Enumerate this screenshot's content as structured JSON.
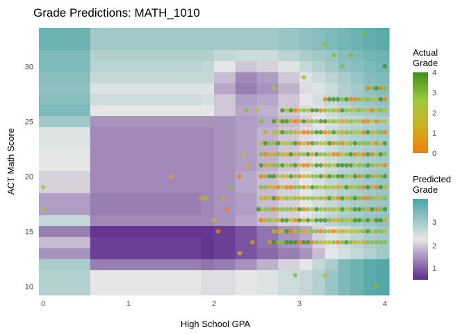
{
  "chart_data": {
    "type": "heatmap",
    "title": "Grade Predictions: MATH_1010",
    "xlabel": "High School GPA",
    "ylabel": "ACT Math Score",
    "xlim": [
      -0.05,
      4.05
    ],
    "ylim": [
      9.2,
      33.5
    ],
    "x_ticks": [
      0,
      1,
      2,
      3,
      4
    ],
    "y_ticks": [
      10,
      15,
      20,
      25,
      30
    ],
    "grid": true,
    "legend_position": "right",
    "heatmap_layer": {
      "name": "Predicted Grade",
      "color_scale": {
        "low": "#5b2a8c",
        "mid": "#e6e6e6",
        "high": "#4aa4a3",
        "domain": [
          0.4,
          4.0
        ],
        "midpoint": 2.2
      },
      "x_breaks": [
        -0.05,
        0.55,
        1.85,
        2.0,
        2.25,
        2.5,
        2.75,
        3.0,
        3.15,
        3.3,
        3.45,
        3.6,
        3.75,
        3.9,
        4.05
      ],
      "y_breaks": [
        9.2,
        11.5,
        12.5,
        13.5,
        14.5,
        15.5,
        16.5,
        18.5,
        20.5,
        22.5,
        24.5,
        25.5,
        26.5,
        27.5,
        28.5,
        29.5,
        30.5,
        31.5,
        33.5
      ],
      "rows_low_to_high": [
        [
          2.8,
          2.2,
          2.1,
          2.1,
          2.2,
          2.3,
          2.5,
          2.6,
          2.8,
          3.1,
          3.4,
          3.6,
          3.8,
          3.9
        ],
        [
          2.9,
          1.2,
          1.1,
          1.2,
          1.4,
          1.7,
          2.0,
          2.2,
          2.6,
          2.9,
          3.4,
          3.6,
          3.8,
          3.9
        ],
        [
          1.4,
          0.6,
          0.5,
          0.6,
          0.8,
          1.0,
          1.2,
          1.4,
          1.8,
          2.2,
          2.4,
          2.6,
          2.8,
          3.0
        ],
        [
          1.8,
          0.6,
          0.5,
          0.6,
          0.8,
          1.1,
          1.4,
          1.6,
          2.0,
          2.3,
          2.5,
          2.7,
          2.9,
          3.0
        ],
        [
          1.2,
          0.5,
          0.5,
          0.6,
          0.8,
          1.1,
          1.4,
          1.6,
          2.0,
          2.3,
          2.5,
          2.7,
          2.9,
          3.0
        ],
        [
          2.6,
          1.3,
          1.3,
          1.4,
          1.6,
          1.8,
          2.0,
          2.3,
          2.5,
          2.7,
          2.9,
          3.0,
          3.1,
          3.2
        ],
        [
          1.5,
          1.2,
          1.3,
          1.4,
          1.5,
          1.8,
          2.0,
          2.2,
          2.4,
          2.6,
          2.8,
          2.9,
          3.0,
          3.1
        ],
        [
          2.0,
          1.3,
          1.3,
          1.4,
          1.6,
          1.8,
          2.0,
          2.2,
          2.4,
          2.6,
          2.8,
          2.9,
          3.0,
          3.1
        ],
        [
          2.2,
          1.3,
          1.3,
          1.4,
          1.5,
          1.7,
          1.9,
          2.1,
          2.3,
          2.5,
          2.7,
          2.8,
          2.9,
          3.0
        ],
        [
          2.3,
          1.3,
          1.3,
          1.4,
          1.5,
          1.7,
          1.9,
          2.1,
          2.3,
          2.5,
          2.7,
          2.8,
          2.9,
          3.0
        ],
        [
          3.0,
          1.4,
          1.4,
          1.4,
          1.5,
          1.6,
          1.8,
          2.0,
          2.2,
          2.4,
          2.6,
          2.7,
          2.8,
          2.9
        ],
        [
          3.4,
          2.2,
          2.2,
          1.9,
          1.6,
          1.7,
          1.9,
          2.1,
          2.3,
          2.5,
          2.7,
          2.9,
          3.0,
          3.1
        ],
        [
          3.3,
          2.5,
          2.4,
          1.9,
          1.5,
          1.6,
          1.9,
          2.2,
          2.4,
          2.6,
          2.8,
          3.0,
          3.1,
          3.2
        ],
        [
          3.2,
          2.3,
          2.3,
          1.6,
          1.2,
          1.4,
          1.7,
          2.1,
          2.3,
          2.5,
          2.8,
          3.0,
          3.2,
          3.3
        ],
        [
          3.3,
          2.6,
          2.6,
          1.8,
          1.3,
          1.5,
          1.9,
          2.3,
          2.5,
          2.7,
          2.9,
          3.1,
          3.3,
          3.4
        ],
        [
          3.4,
          2.7,
          2.6,
          2.2,
          1.9,
          2.0,
          2.3,
          2.6,
          2.8,
          3.0,
          3.2,
          3.3,
          3.4,
          3.5
        ],
        [
          3.4,
          2.8,
          2.8,
          2.6,
          2.5,
          2.5,
          2.7,
          2.9,
          3.0,
          3.1,
          3.3,
          3.4,
          3.5,
          3.6
        ],
        [
          3.6,
          3.0,
          3.0,
          3.0,
          3.0,
          3.0,
          3.1,
          3.2,
          3.3,
          3.4,
          3.5,
          3.6,
          3.7,
          3.8
        ]
      ]
    },
    "point_layer": {
      "name": "Actual Grade",
      "color_scale": {
        "stops": [
          "#f07f09",
          "#c9b424",
          "#9dc93d",
          "#3f8f1d"
        ],
        "domain": [
          0,
          4
        ]
      },
      "points": [
        {
          "x": 0.0,
          "y": 19,
          "g": 2
        },
        {
          "x": 0.0,
          "y": 17,
          "g": 2
        },
        {
          "x": 1.5,
          "y": 20,
          "g": 1
        },
        {
          "x": 1.85,
          "y": 18,
          "g": 1
        },
        {
          "x": 1.9,
          "y": 18,
          "g": 2
        },
        {
          "x": 2.0,
          "y": 16,
          "g": 2
        },
        {
          "x": 2.05,
          "y": 15,
          "g": 0
        },
        {
          "x": 2.1,
          "y": 18,
          "g": 1
        },
        {
          "x": 2.15,
          "y": 17,
          "g": 0
        },
        {
          "x": 2.2,
          "y": 19,
          "g": 3
        },
        {
          "x": 2.3,
          "y": 13,
          "g": 1
        },
        {
          "x": 2.3,
          "y": 20,
          "g": 0
        },
        {
          "x": 2.35,
          "y": 22,
          "g": 2
        },
        {
          "x": 2.38,
          "y": 26,
          "g": 3
        },
        {
          "x": 2.4,
          "y": 21,
          "g": 1
        },
        {
          "x": 2.45,
          "y": 14,
          "g": 1
        },
        {
          "x": 2.5,
          "y": 26,
          "g": 2
        },
        {
          "x": 2.52,
          "y": 17,
          "g": 4
        },
        {
          "x": 3.9,
          "y": 10,
          "g": 3
        },
        {
          "x": 3.75,
          "y": 33,
          "g": 3
        },
        {
          "x": 3.3,
          "y": 32,
          "g": 3
        },
        {
          "x": 3.4,
          "y": 31,
          "g": 3
        },
        {
          "x": 3.5,
          "y": 30,
          "g": 3
        },
        {
          "x": 4.0,
          "y": 30,
          "g": 4
        },
        {
          "x": 3.05,
          "y": 29,
          "g": 2
        },
        {
          "x": 3.6,
          "y": 31,
          "g": 3
        },
        {
          "x": 2.7,
          "y": 28,
          "g": 2
        },
        {
          "x": 2.95,
          "y": 11,
          "g": 3
        },
        {
          "x": 3.3,
          "y": 11,
          "g": 2
        }
      ],
      "dense_region": {
        "gpa": [
          2.55,
          2.6,
          2.65,
          2.7,
          2.75,
          2.8,
          2.85,
          2.9,
          2.95,
          3.0,
          3.05,
          3.1,
          3.15,
          3.2,
          3.25,
          3.3,
          3.35,
          3.4,
          3.45,
          3.5,
          3.55,
          3.6,
          3.65,
          3.7,
          3.75,
          3.8,
          3.85,
          3.9,
          3.95,
          4.0
        ],
        "act_min": 14,
        "act_max": 28
      }
    }
  },
  "legend_actual": {
    "title_line1": "Actual",
    "title_line2": "Grade",
    "ticks": [
      "4",
      "3",
      "2",
      "1",
      "0"
    ]
  },
  "legend_predicted": {
    "title_line1": "Predicted",
    "title_line2": "Grade",
    "ticks": [
      "3",
      "2",
      "1"
    ]
  }
}
